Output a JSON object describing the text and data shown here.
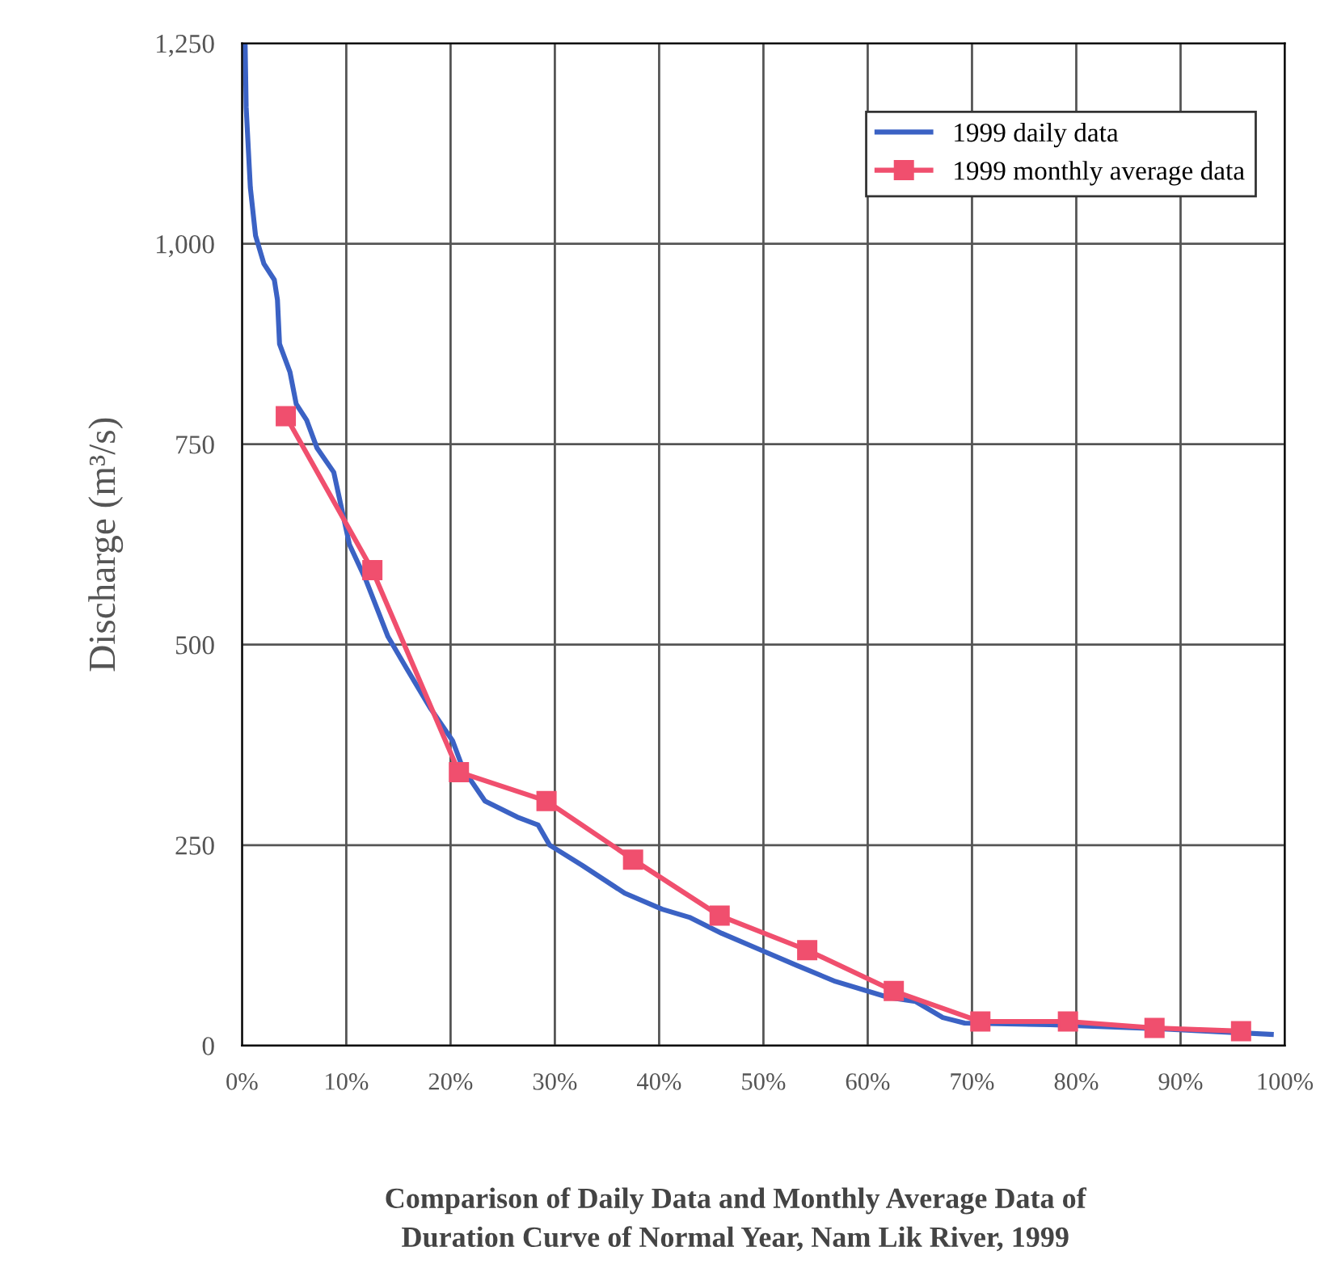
{
  "chart_data": {
    "type": "line",
    "title": "Comparison of Daily Data and Monthly Average Data of\nDuration Curve of Normal Year, Nam Lik River, 1999",
    "ylabel": "Discharge (m³/s)",
    "xlim": [
      0,
      100
    ],
    "ylim": [
      0,
      1250
    ],
    "xticks": [
      {
        "value": 0,
        "label": "0%"
      },
      {
        "value": 10,
        "label": "10%"
      },
      {
        "value": 20,
        "label": "20%"
      },
      {
        "value": 30,
        "label": "30%"
      },
      {
        "value": 40,
        "label": "40%"
      },
      {
        "value": 50,
        "label": "50%"
      },
      {
        "value": 60,
        "label": "60%"
      },
      {
        "value": 70,
        "label": "70%"
      },
      {
        "value": 80,
        "label": "80%"
      },
      {
        "value": 90,
        "label": "90%"
      },
      {
        "value": 100,
        "label": "100%"
      }
    ],
    "yticks": [
      0,
      250,
      500,
      750,
      {
        "value": 1000,
        "label": "1,000"
      },
      {
        "value": 1250,
        "label": "1,250"
      }
    ],
    "grid": true,
    "legend": "top right",
    "series": [
      {
        "name": "1999 daily data",
        "color": "#3b62c4",
        "marker": "none",
        "x": [
          0.3,
          0.4,
          0.8,
          1.3,
          2.1,
          3.1,
          3.4,
          3.6,
          4.6,
          5.2,
          6.2,
          7.2,
          8.8,
          10.3,
          11.9,
          14.0,
          15.8,
          18.1,
          20.2,
          21.2,
          23.3,
          26.4,
          28.4,
          29.5,
          32.6,
          36.7,
          40.3,
          42.9,
          46.0,
          49.6,
          53.2,
          56.9,
          62.0,
          64.6,
          67.2,
          69.3,
          77.5,
          87.9,
          98.7
        ],
        "values": [
          1250,
          1170,
          1070,
          1010,
          975,
          955,
          930,
          875,
          840,
          800,
          780,
          745,
          715,
          625,
          580,
          510,
          470,
          420,
          380,
          345,
          305,
          285,
          275,
          250,
          225,
          190,
          170,
          160,
          140,
          120,
          100,
          80,
          60,
          55,
          35,
          28,
          26,
          21,
          14
        ]
      },
      {
        "name": "1999 monthly average data",
        "color": "#f04f6e",
        "marker": "square",
        "x": [
          4.2,
          12.5,
          20.8,
          29.2,
          37.5,
          45.8,
          54.2,
          62.5,
          70.8,
          79.2,
          87.5,
          95.8
        ],
        "values": [
          785,
          593,
          341,
          305,
          232,
          162,
          119,
          68,
          30,
          30,
          22,
          18
        ]
      }
    ]
  }
}
